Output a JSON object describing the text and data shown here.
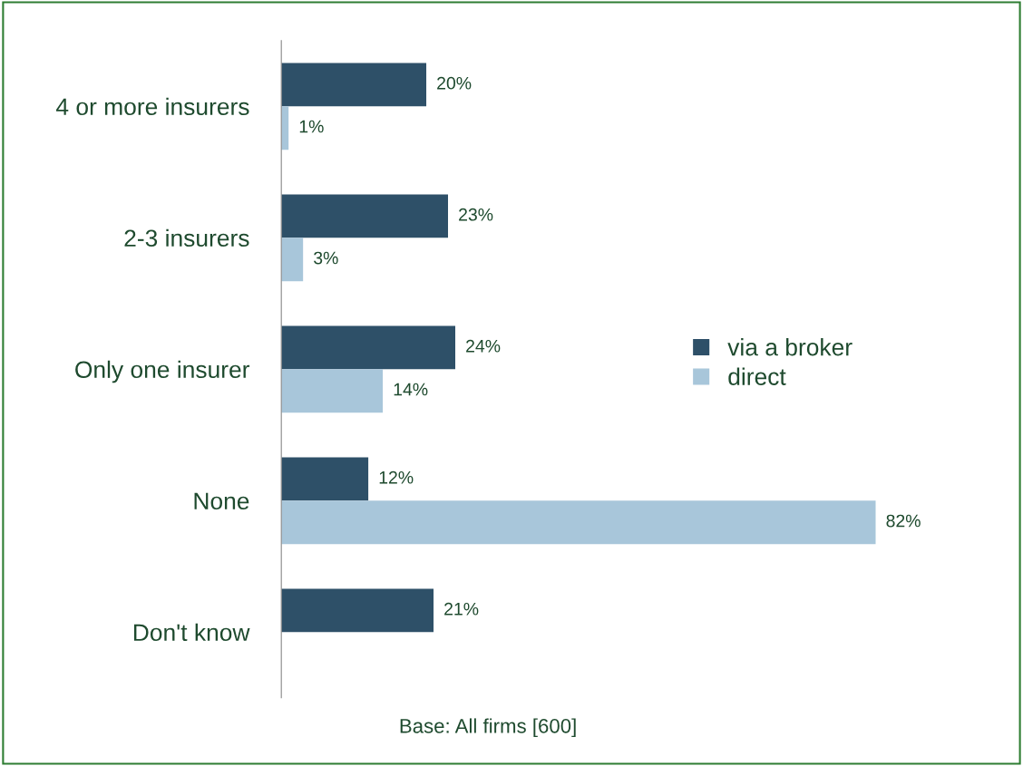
{
  "chart_data": {
    "type": "bar",
    "orientation": "horizontal",
    "categories": [
      "4 or more insurers",
      "2-3 insurers",
      "Only one insurer",
      "None",
      "Don't know"
    ],
    "series": [
      {
        "name": "via a broker",
        "color": "#2e5068",
        "values": [
          20,
          23,
          24,
          12,
          21
        ],
        "value_labels": [
          "20%",
          "23%",
          "24%",
          "12%",
          "21%"
        ]
      },
      {
        "name": "direct",
        "color": "#a8c6da",
        "values": [
          1,
          3,
          14,
          82,
          null
        ],
        "value_labels": [
          "1%",
          "3%",
          "14%",
          "82%",
          null
        ]
      }
    ],
    "legend": "right",
    "grid": false,
    "annotations": [
      "Base: All firms [600]"
    ]
  }
}
